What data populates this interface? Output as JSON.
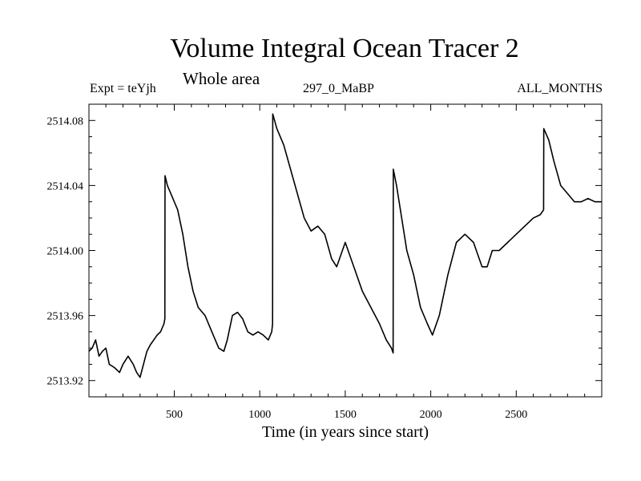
{
  "header": {
    "title": "Volume Integral Ocean Tracer 2",
    "subtitle": "Whole area",
    "expt": "Expt = teYjh",
    "period": "297_0_MaBP",
    "months": "ALL_MONTHS"
  },
  "chart_data": {
    "type": "line",
    "title": "Volume Integral Ocean Tracer 2",
    "subtitle": "Whole area",
    "xlabel": "Time (in years since start)",
    "ylabel": "",
    "xlim": [
      1,
      3000
    ],
    "ylim": [
      2513.91,
      2514.09
    ],
    "x_ticks": [
      500,
      1000,
      1500,
      2000,
      2500
    ],
    "y_ticks": [
      2513.92,
      2513.96,
      2514.0,
      2514.04,
      2514.08
    ],
    "y_tick_labels": [
      "2513.92",
      "2513.96",
      "2514.00",
      "2514.04",
      "2514.08"
    ],
    "grid": false,
    "series": [
      {
        "x": [
          1,
          20,
          40,
          60,
          80,
          100,
          120,
          150,
          180,
          200,
          230,
          260,
          280,
          300,
          320,
          340,
          360,
          380,
          400,
          420,
          440,
          445,
          446,
          460,
          480,
          500,
          520,
          550,
          580,
          610,
          640,
          680,
          720,
          760,
          790,
          810,
          840,
          870,
          900,
          930,
          960,
          990,
          1020,
          1050,
          1070,
          1075,
          1076,
          1100,
          1140,
          1180,
          1220,
          1260,
          1300,
          1340,
          1380,
          1420,
          1450,
          1500,
          1550,
          1600,
          1650,
          1700,
          1740,
          1770,
          1780,
          1781,
          1800,
          1830,
          1860,
          1900,
          1940,
          1980,
          2010,
          2050,
          2100,
          2150,
          2200,
          2250,
          2300,
          2330,
          2360,
          2400,
          2450,
          2500,
          2550,
          2600,
          2640,
          2660,
          2661,
          2690,
          2720,
          2760,
          2800,
          2840,
          2880,
          2920,
          2960,
          3000
        ],
        "y": [
          2513.938,
          2513.94,
          2513.945,
          2513.935,
          2513.938,
          2513.94,
          2513.93,
          2513.928,
          2513.925,
          2513.93,
          2513.935,
          2513.93,
          2513.925,
          2513.922,
          2513.93,
          2513.938,
          2513.942,
          2513.945,
          2513.948,
          2513.95,
          2513.955,
          2513.958,
          2514.046,
          2514.04,
          2514.035,
          2514.03,
          2514.025,
          2514.01,
          2513.99,
          2513.975,
          2513.965,
          2513.96,
          2513.95,
          2513.94,
          2513.938,
          2513.945,
          2513.96,
          2513.962,
          2513.958,
          2513.95,
          2513.948,
          2513.95,
          2513.948,
          2513.945,
          2513.95,
          2513.955,
          2514.084,
          2514.075,
          2514.065,
          2514.05,
          2514.035,
          2514.02,
          2514.012,
          2514.015,
          2514.01,
          2513.995,
          2513.99,
          2514.005,
          2513.99,
          2513.975,
          2513.965,
          2513.955,
          2513.945,
          2513.94,
          2513.937,
          2514.05,
          2514.04,
          2514.02,
          2514.0,
          2513.985,
          2513.965,
          2513.955,
          2513.948,
          2513.96,
          2513.985,
          2514.005,
          2514.01,
          2514.005,
          2513.99,
          2513.99,
          2514.0,
          2514.0,
          2514.005,
          2514.01,
          2514.015,
          2514.02,
          2514.022,
          2514.025,
          2514.075,
          2514.068,
          2514.055,
          2514.04,
          2514.035,
          2514.03,
          2514.03,
          2514.032,
          2514.03,
          2514.03
        ]
      }
    ]
  }
}
